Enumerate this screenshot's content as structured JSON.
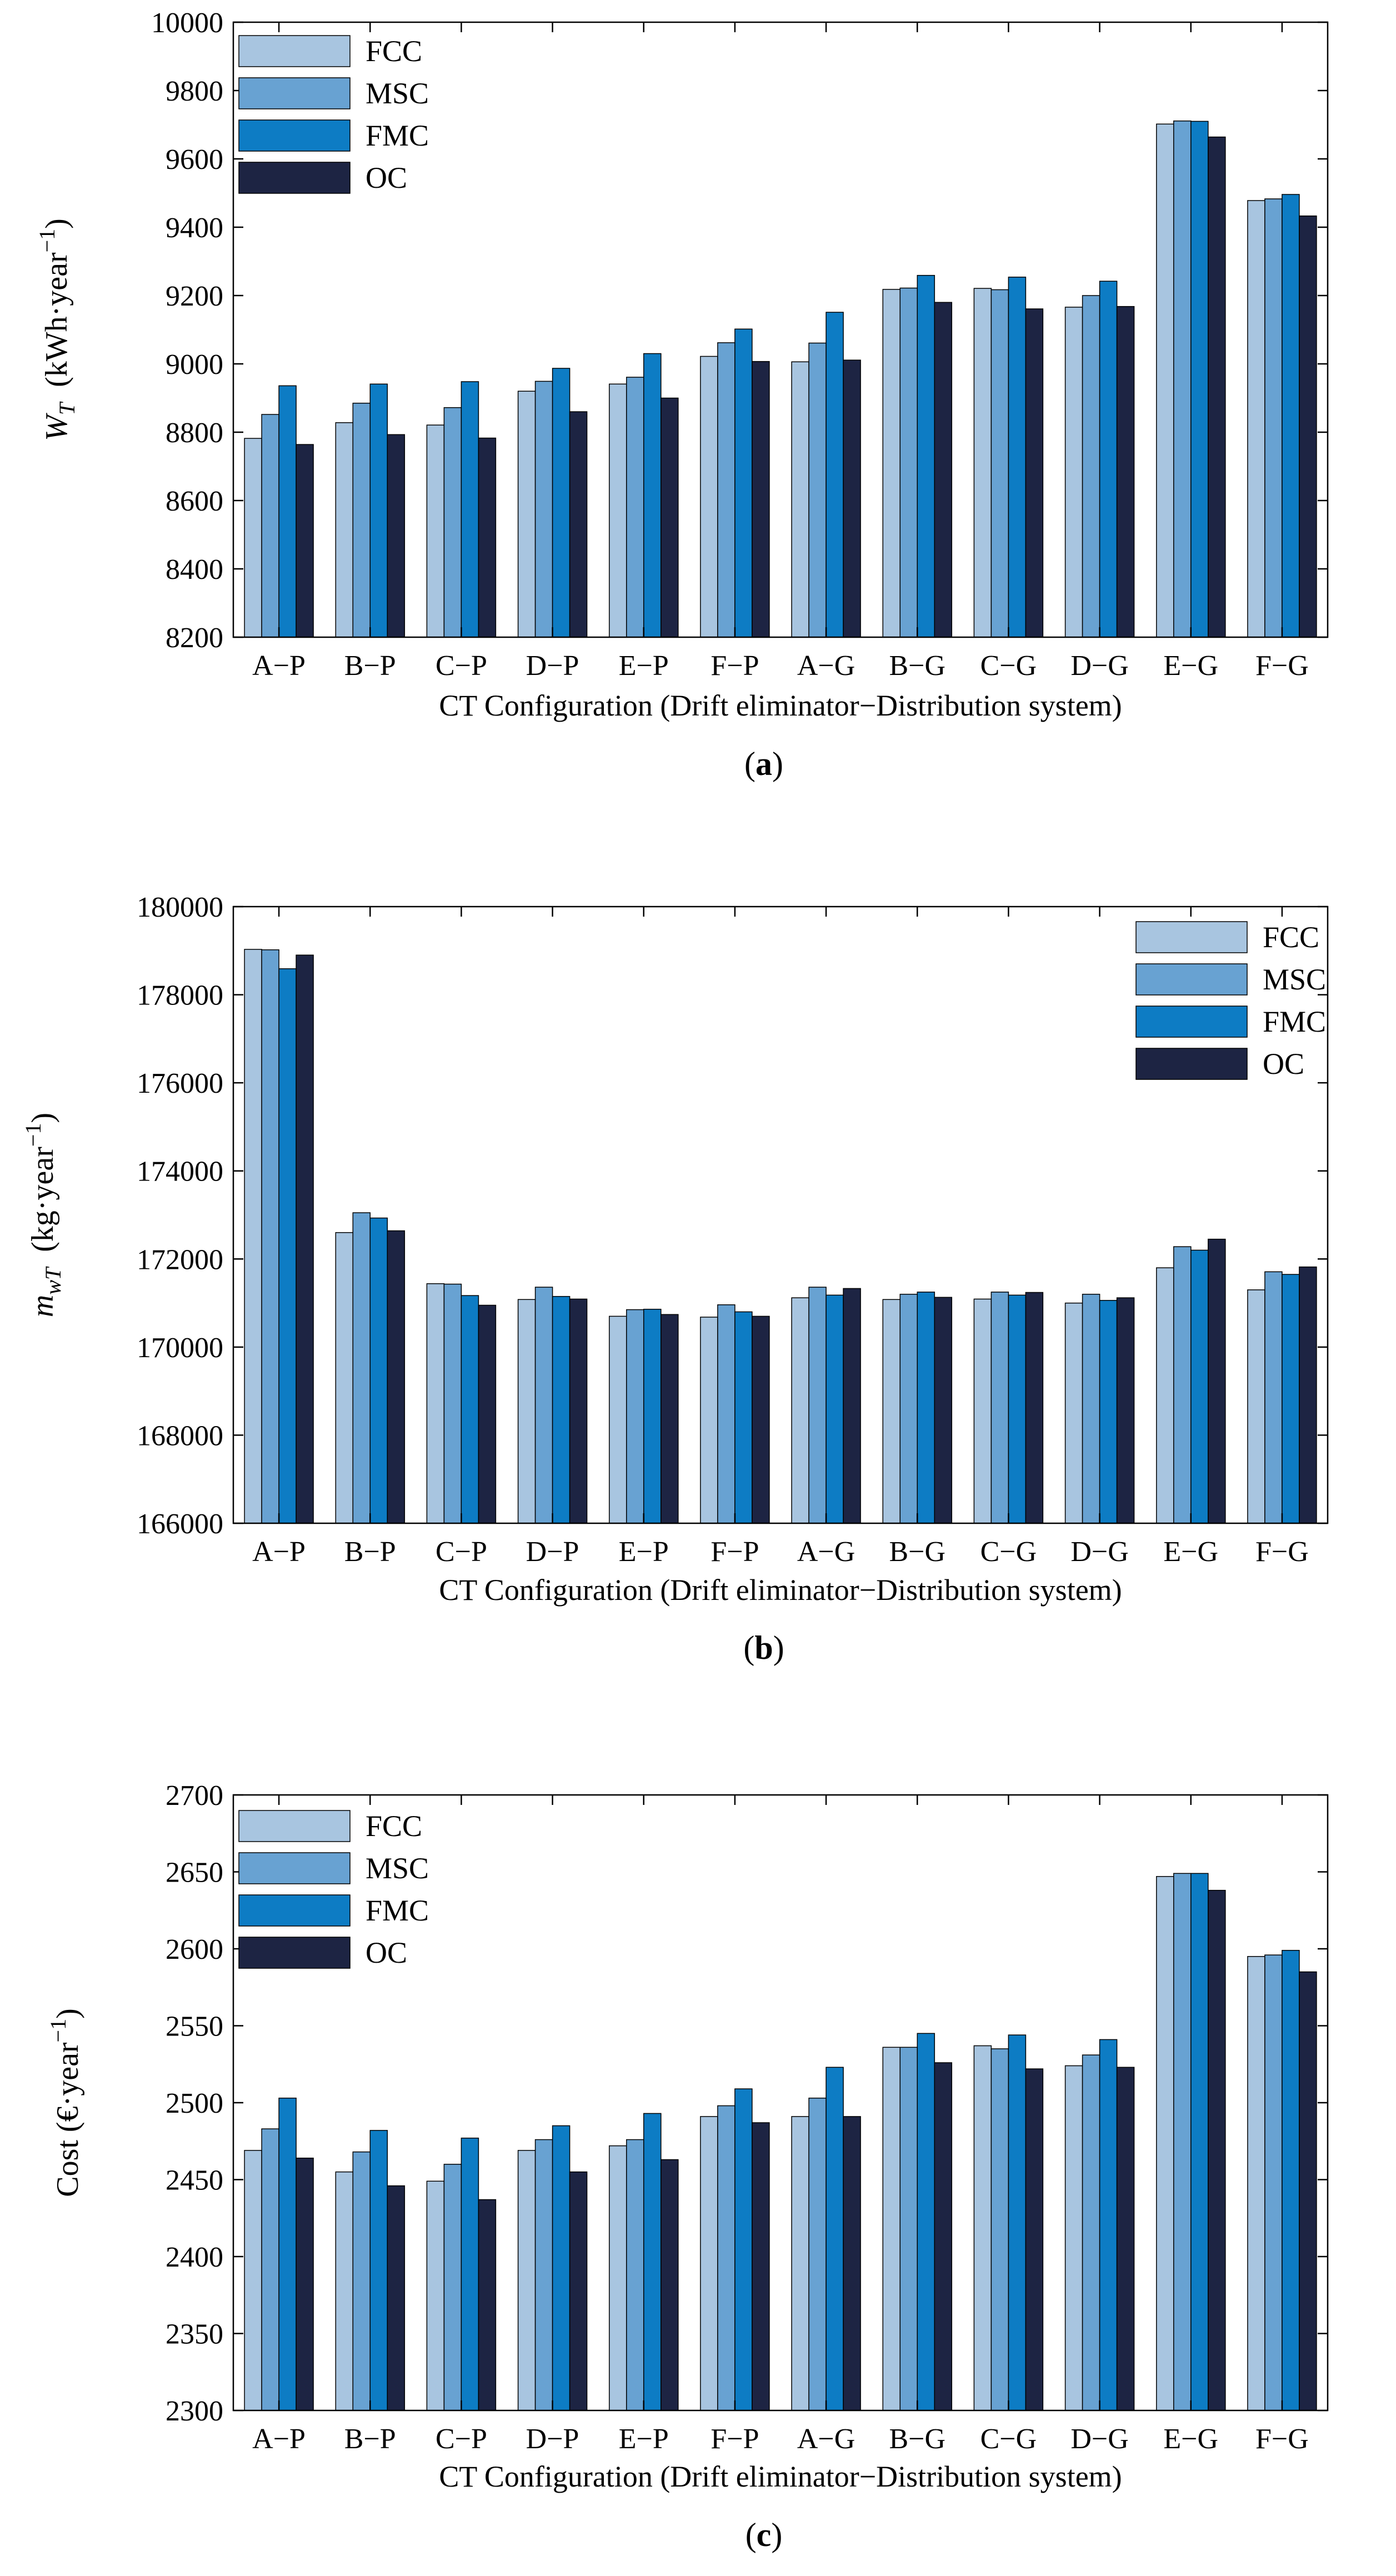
{
  "colors": {
    "FCC": "#a8c5e0",
    "MSC": "#68a2d2",
    "FMC": "#0d7cc4",
    "OC": "#1d2443",
    "axis": "#000000"
  },
  "chart_data": [
    {
      "id": "a",
      "type": "bar",
      "panel_label": "(a)",
      "panel_letter": "a",
      "categories": [
        "A−P",
        "B−P",
        "C−P",
        "D−P",
        "E−P",
        "F−P",
        "A−G",
        "B−G",
        "C−G",
        "D−G",
        "E−G",
        "F−G"
      ],
      "xlabel": "CT Configuration (Drift eliminator−Distribution system)",
      "ylabel_main": "W",
      "ylabel_sub": "T",
      "ylabel_unit": "(kWh·year",
      "ylabel_sup": "−1",
      "ylabel_close": ")",
      "ylim": [
        8200,
        10000
      ],
      "yticks": [
        8200,
        8400,
        8600,
        8800,
        9000,
        9200,
        9400,
        9600,
        9800,
        10000
      ],
      "legend_position": "top-left",
      "series": [
        {
          "name": "FCC",
          "values": [
            8782,
            8828,
            8821,
            8920,
            8941,
            9022,
            9006,
            9218,
            9221,
            9166,
            9702,
            9478
          ]
        },
        {
          "name": "MSC",
          "values": [
            8852,
            8885,
            8872,
            8949,
            8961,
            9062,
            9061,
            9222,
            9217,
            9200,
            9711,
            9483
          ]
        },
        {
          "name": "FMC",
          "values": [
            8936,
            8941,
            8948,
            8987,
            9030,
            9102,
            9151,
            9259,
            9254,
            9242,
            9710,
            9496
          ]
        },
        {
          "name": "OC",
          "values": [
            8764,
            8793,
            8783,
            8860,
            8900,
            9007,
            9011,
            9180,
            9161,
            9168,
            9664,
            9433
          ]
        }
      ]
    },
    {
      "id": "b",
      "type": "bar",
      "panel_label": "(b)",
      "panel_letter": "b",
      "categories": [
        "A−P",
        "B−P",
        "C−P",
        "D−P",
        "E−P",
        "F−P",
        "A−G",
        "B−G",
        "C−G",
        "D−G",
        "E−G",
        "F−G"
      ],
      "xlabel": "CT Configuration (Drift eliminator−Distribution system)",
      "ylabel_main": "m",
      "ylabel_sub": "wT",
      "ylabel_unit": "(kg·year",
      "ylabel_sup": "−1",
      "ylabel_close": ")",
      "ylim": [
        166000,
        180000
      ],
      "yticks": [
        166000,
        168000,
        170000,
        172000,
        174000,
        176000,
        178000,
        180000
      ],
      "legend_position": "top-right",
      "series": [
        {
          "name": "FCC",
          "values": [
            179030,
            172600,
            171440,
            171080,
            170700,
            170680,
            171120,
            171080,
            171090,
            171000,
            171800,
            171300
          ]
        },
        {
          "name": "MSC",
          "values": [
            179020,
            173050,
            171430,
            171360,
            170850,
            170960,
            171360,
            171200,
            171250,
            171200,
            172280,
            171710
          ]
        },
        {
          "name": "FMC",
          "values": [
            178590,
            172930,
            171170,
            171150,
            170860,
            170800,
            171180,
            171250,
            171180,
            171060,
            172200,
            171650
          ]
        },
        {
          "name": "OC",
          "values": [
            178900,
            172640,
            170950,
            171090,
            170740,
            170700,
            171330,
            171130,
            171240,
            171120,
            172450,
            171820
          ]
        }
      ]
    },
    {
      "id": "c",
      "type": "bar",
      "panel_label": "(c)",
      "panel_letter": "c",
      "categories": [
        "A−P",
        "B−P",
        "C−P",
        "D−P",
        "E−P",
        "F−P",
        "A−G",
        "B−G",
        "C−G",
        "D−G",
        "E−G",
        "F−G"
      ],
      "xlabel": "CT Configuration (Drift eliminator−Distribution system)",
      "ylabel_main": "Cost (€·year",
      "ylabel_sub": "",
      "ylabel_unit": "",
      "ylabel_sup": "−1",
      "ylabel_close": ")",
      "ylim": [
        2300,
        2700
      ],
      "yticks": [
        2300,
        2350,
        2400,
        2450,
        2500,
        2550,
        2600,
        2650,
        2700
      ],
      "legend_position": "top-left",
      "series": [
        {
          "name": "FCC",
          "values": [
            2469,
            2455,
            2449,
            2469,
            2472,
            2491,
            2491,
            2536,
            2537,
            2524,
            2647,
            2595
          ]
        },
        {
          "name": "MSC",
          "values": [
            2483,
            2468,
            2460,
            2476,
            2476,
            2498,
            2503,
            2536,
            2535,
            2531,
            2649,
            2596
          ]
        },
        {
          "name": "FMC",
          "values": [
            2503,
            2482,
            2477,
            2485,
            2493,
            2509,
            2523,
            2545,
            2544,
            2541,
            2649,
            2599
          ]
        },
        {
          "name": "OC",
          "values": [
            2464,
            2446,
            2437,
            2455,
            2463,
            2487,
            2491,
            2526,
            2522,
            2523,
            2638,
            2585
          ]
        }
      ]
    }
  ]
}
